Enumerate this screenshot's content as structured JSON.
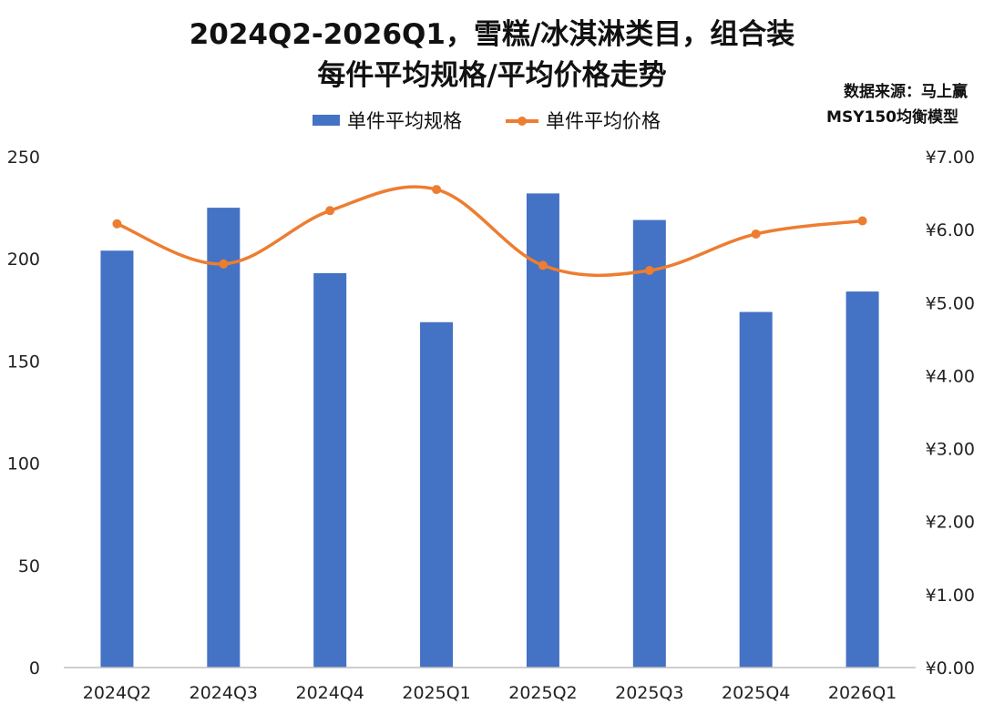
{
  "chart_data": {
    "type": "bar",
    "title_line1": "2024Q2-2026Q1，雪糕/冰淇淋类目，组合装",
    "title_line2": "每件平均规格/平均价格走势",
    "source_line1": "数据来源：马上赢",
    "source_line2": "MSY150均衡模型",
    "categories": [
      "2024Q2",
      "2024Q3",
      "2024Q4",
      "2025Q1",
      "2025Q2",
      "2025Q3",
      "2025Q4",
      "2026Q1"
    ],
    "series": [
      {
        "name": "单件平均规格",
        "type": "bar",
        "axis": "left",
        "color": "#4472C4",
        "values": [
          204,
          225,
          193,
          169,
          232,
          219,
          174,
          184
        ]
      },
      {
        "name": "单件平均价格",
        "type": "line",
        "axis": "right",
        "smooth": true,
        "color": "#ED7D31",
        "values": [
          6.08,
          5.53,
          6.26,
          6.55,
          5.51,
          5.44,
          5.94,
          6.12
        ]
      }
    ],
    "y_left": {
      "min": 0,
      "max": 250,
      "ticks": [
        "0",
        "50",
        "100",
        "150",
        "200",
        "250"
      ]
    },
    "y_right": {
      "min": 0,
      "max": 7,
      "ticks": [
        "¥0.00",
        "¥1.00",
        "¥2.00",
        "¥3.00",
        "¥4.00",
        "¥5.00",
        "¥6.00",
        "¥7.00"
      ]
    },
    "grid": false,
    "legend_position": "top-center"
  }
}
